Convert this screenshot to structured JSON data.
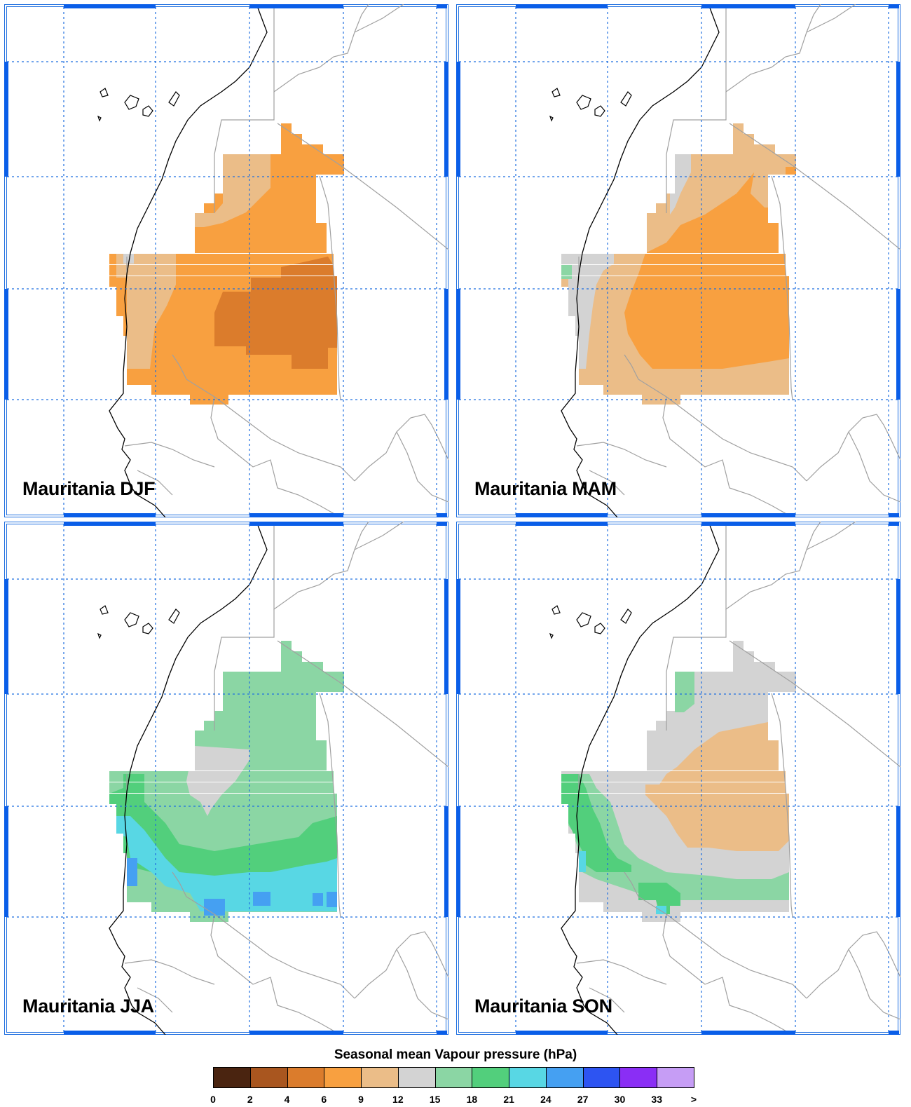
{
  "panels": [
    {
      "id": "djf",
      "title": "Mauritania DJF"
    },
    {
      "id": "mam",
      "title": "Mauritania MAM"
    },
    {
      "id": "jja",
      "title": "Mauritania JJA"
    },
    {
      "id": "son",
      "title": "Mauritania SON"
    }
  ],
  "legend": {
    "title": "Seasonal mean Vapour pressure (hPa)",
    "ticks": [
      "0",
      "2",
      "4",
      "6",
      "9",
      "12",
      "15",
      "18",
      "21",
      "24",
      "27",
      "30",
      "33",
      ">"
    ],
    "colors": [
      "#4a2410",
      "#a9561f",
      "#db7c2c",
      "#f8a040",
      "#ebbd88",
      "#d3d3d3",
      "#8bd6a4",
      "#52cf7c",
      "#58d7e4",
      "#45a0f2",
      "#2d54f2",
      "#8a2ef5",
      "#c69df5"
    ]
  },
  "map_style": {
    "grid_color": "#1f6fe0",
    "border_blue": "#0a5ee8",
    "coast_color": "#000000",
    "country_color": "#a0a0a0"
  }
}
